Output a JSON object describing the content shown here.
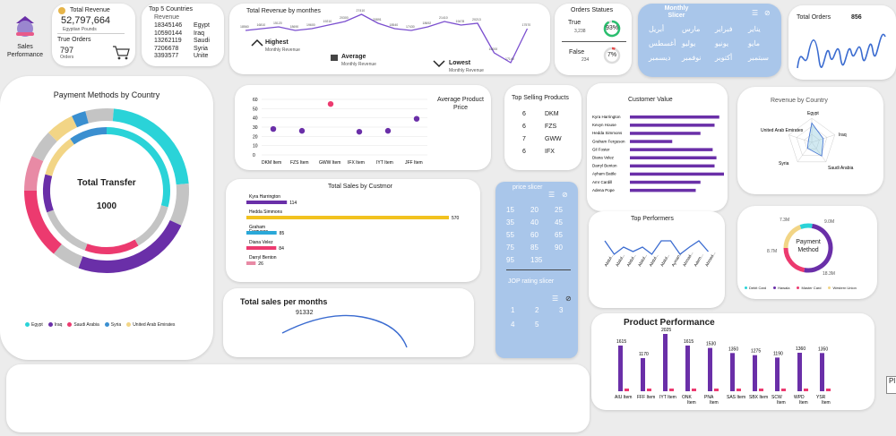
{
  "logo": {
    "title": "Sales Performance"
  },
  "total_revenue": {
    "title": "Total Revenue",
    "value": "52,797,664",
    "unit": "Egyptian Pounds",
    "orders_label": "True Orders",
    "orders_value": "797",
    "orders_unit": "Orders"
  },
  "top5": {
    "title": "Top 5 Countries",
    "header": "Revenue",
    "rows": [
      {
        "value": "18345146",
        "country": "Egypt"
      },
      {
        "value": "10590144",
        "country": "Iraq"
      },
      {
        "value": "13262119",
        "country": "Saudi"
      },
      {
        "value": "7206678",
        "country": "Syria"
      },
      {
        "value": "3393577",
        "country": "Unite"
      }
    ]
  },
  "monthly_rev": {
    "title": "Total Revenue  by monthes",
    "highest": "Highest",
    "highest_sub": "Monthly Revenue",
    "average": "Average",
    "average_sub": "Monthly Revenue",
    "lowest": "Lowest",
    "lowest_sub": "Monthly Revenue",
    "labels": [
      "18560",
      "16810",
      "15120",
      "18690",
      "19600",
      "19210",
      "20300",
      "27410",
      "20891",
      "18540",
      "17430",
      "18692",
      "21410",
      "19478",
      "20213",
      "16000",
      "17140",
      "17570"
    ]
  },
  "orders_status": {
    "title": "Orders Statues",
    "true_label": "True",
    "true_value": "3,238",
    "true_pct": "93%",
    "false_label": "False",
    "false_value": "234",
    "false_pct": "7%",
    "true_pct_num": 93,
    "false_pct_num": 7
  },
  "monthly_slicer": {
    "title": "Monthly Slicer",
    "items": [
      "يناير",
      "فبراير",
      "مارس",
      "أبريل",
      "مايو",
      "يونيو",
      "يوليو",
      "أغسطس",
      "سبتمبر",
      "أكتوبر",
      "نوفمبر",
      "ديسمبر"
    ]
  },
  "total_orders": {
    "title": "Total Orders",
    "value": "856"
  },
  "payment_country": {
    "title": "Payment Methods by Country",
    "center_title": "Total Transfer",
    "center_value": "1000",
    "legend": [
      {
        "name": "Egypt",
        "color": "#2ad3d8"
      },
      {
        "name": "Iraq",
        "color": "#6a2fa8"
      },
      {
        "name": "Saudi Arabia",
        "color": "#ec3a6f"
      },
      {
        "name": "Syria",
        "color": "#3a8fd0"
      },
      {
        "name": "United Arab Emirates",
        "color": "#f2d586"
      }
    ]
  },
  "avg_price": {
    "title": "Average Product Price",
    "yticks": [
      "60",
      "50",
      "40",
      "30",
      "20",
      "10",
      "0"
    ]
  },
  "top_selling": {
    "title": "Top Selling Products",
    "rows": [
      {
        "n": "6",
        "p": "DKM"
      },
      {
        "n": "6",
        "p": "FZS"
      },
      {
        "n": "7",
        "p": "GWW"
      },
      {
        "n": "6",
        "p": "IFX"
      }
    ]
  },
  "customer_value": {
    "title": "Customer Value"
  },
  "revenue_country": {
    "title": "Revenue by Country",
    "labels": [
      "Egypt",
      "Iraq",
      "Saudi Arabia",
      "Syria",
      "United Arab Emirates"
    ]
  },
  "sales_customer": {
    "title": "Total Sales by Custmor"
  },
  "price_slicer": {
    "title": "price slicer",
    "values": [
      "15",
      "20",
      "25",
      "35",
      "40",
      "45",
      "55",
      "60",
      "65",
      "75",
      "85",
      "90",
      "95",
      "135"
    ]
  },
  "rating_slicer": {
    "title": "JOP rating slicer",
    "values": [
      "1",
      "2",
      "3",
      "4",
      "5"
    ]
  },
  "top_performers": {
    "title": "Top Performers",
    "labels": [
      "Abdul...",
      "Abdul...",
      "Abdul...",
      "Abdul...",
      "Abdul...",
      "Abdul...",
      "Ayman...",
      "Ahmad...",
      "Adem...",
      "Ahmed..."
    ]
  },
  "payment_method": {
    "center1": "Payment",
    "center2": "Method",
    "labels": [
      "7.3M",
      "9.0M",
      "8.7M",
      "18.3M"
    ],
    "legend": [
      {
        "name": "Debit Card",
        "color": "#2ad3d8"
      },
      {
        "name": "Hawala",
        "color": "#6a2fa8"
      },
      {
        "name": "Master Card",
        "color": "#ec3a6f"
      },
      {
        "name": "Western Union",
        "color": "#f2d586"
      }
    ]
  },
  "sales_months": {
    "title": "Total sales per months",
    "value": "91332"
  },
  "product_perf": {
    "title": "Product Performance"
  },
  "side_tab": "Pl",
  "chart_data": [
    {
      "type": "scatter",
      "title": "Average Product Price",
      "categories": [
        "DKM Item",
        "FZS Item",
        "GWW Item",
        "IFX Item",
        "IYT Item",
        "JFF Item"
      ],
      "values": [
        28,
        26,
        55,
        25,
        26,
        39
      ],
      "ylim": [
        0,
        60
      ]
    },
    {
      "type": "bar",
      "title": "Top Selling Products",
      "categories": [
        "DKM",
        "FZS",
        "GWW",
        "IFX"
      ],
      "values": [
        6,
        6,
        7,
        6
      ]
    },
    {
      "type": "bar",
      "title": "Customer Value",
      "categories": [
        "Kyra Harrington",
        "Kevyn House",
        "Hedda Simmons",
        "Graham Ferguson",
        "Gil Foster",
        "Diana Velez",
        "Darryl Benton",
        "Ayham Battle",
        "Amr Cardill",
        "Adena Pope"
      ],
      "values": [
        95,
        90,
        75,
        45,
        88,
        92,
        90,
        100,
        75,
        70
      ]
    },
    {
      "type": "bar",
      "title": "Total Sales by Custmor",
      "categories": [
        "Kyra Harrington",
        "Hedda Simmons",
        "Graham Ferguson",
        "Diana Velez",
        "Darryl Benton"
      ],
      "values": [
        114,
        570,
        85,
        84,
        26
      ]
    },
    {
      "type": "bar",
      "title": "Product Performance",
      "categories": [
        "AIU Item",
        "FFF Item",
        "IYT Item",
        "ONK Item",
        "PNA Item",
        "SAS Item",
        "SBX Item",
        "SCW Item",
        "WPD Item",
        "YSR Item"
      ],
      "values": [
        1615,
        1170,
        2025,
        1615,
        1530,
        1350,
        1275,
        1190,
        1360,
        1350
      ]
    },
    {
      "type": "pie",
      "title": "Payment Method",
      "categories": [
        "Debit Card",
        "Hawala",
        "Master Card",
        "Western Union"
      ],
      "values": [
        18.3,
        9.0,
        8.7,
        7.3
      ]
    },
    {
      "type": "line",
      "title": "Total sales per months",
      "values": [
        91332
      ]
    }
  ]
}
